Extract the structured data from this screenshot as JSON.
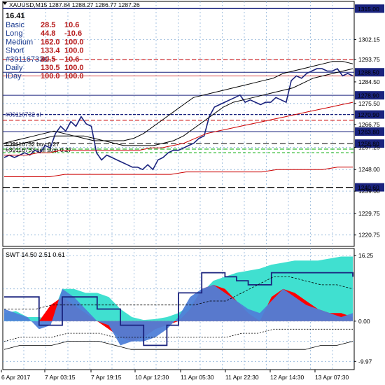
{
  "chart_data": [
    {
      "type": "line",
      "title": "XAUUSD,M15",
      "ohlc_text": "1287.84 1288.27 1286.77 1287.26",
      "ylim": [
        1216.0,
        1318.0
      ],
      "y_ticks": [
        1315.0,
        1302.15,
        1293.75,
        1288.5,
        1284.5,
        1278.9,
        1275.5,
        1270.9,
        1266.75,
        1263.8,
        1258.8,
        1257.25,
        1248.0,
        1240.6,
        1239.0,
        1229.75,
        1220.75
      ],
      "y_tick_labels": [
        "1315.00",
        "1302.15",
        "1293.75",
        "1288.50",
        "1284.50",
        "1278.90",
        "1275.50",
        "1270.90",
        "1266.75",
        "1263.80",
        "1258.80",
        "1257.25",
        "1248.00",
        "1240.60",
        "1239.00",
        "1229.75",
        "1220.75"
      ],
      "highlighted_ticks": [
        1315.0,
        1288.5,
        1278.9,
        1270.9,
        1263.8,
        1258.8,
        1240.6
      ],
      "x_tick_labels": [
        "6 Apr 2017",
        "7 Apr 03:15",
        "7 Apr 19:15",
        "10 Apr 12:30",
        "11 Apr 05:30",
        "11 Apr 22:30",
        "12 Apr 14:30",
        "13 Apr 07:30"
      ],
      "info_panel": {
        "value": "16.41",
        "rows": [
          {
            "label": "Basic",
            "v1": "28.5",
            "v2": "10.6"
          },
          {
            "label": "Long",
            "v1": "44.8",
            "v2": "-10.6"
          },
          {
            "label": "Medium",
            "v1": "162.0",
            "v2": "100.0"
          },
          {
            "label": "Short",
            "v1": "133.4",
            "v2": "100.0"
          },
          {
            "label": "#39116733sl",
            "v1": "30.5",
            "v2": "10.6"
          },
          {
            "label": "Daily",
            "v1": "130.5",
            "v2": "100.0"
          },
          {
            "label": "IDay",
            "v1": "100.0",
            "v2": "100.0"
          }
        ]
      },
      "order_labels": [
        "#39116732 sl",
        "#39116732 buy 0.27",
        "#39116733 sell stop 0.27"
      ],
      "series": [
        {
          "name": "price",
          "color": "#1a237e",
          "values": [
            1253,
            1254,
            1253,
            1254,
            1255,
            1254,
            1256,
            1255,
            1258,
            1257,
            1263,
            1266,
            1264,
            1268,
            1266,
            1270,
            1267,
            1266,
            1255,
            1252,
            1254,
            1253,
            1252,
            1251,
            1250,
            1249,
            1249,
            1248,
            1250,
            1248,
            1252,
            1253,
            1255,
            1256,
            1256,
            1257,
            1258,
            1259,
            1261,
            1262,
            1270,
            1274,
            1275,
            1276,
            1277,
            1278,
            1279,
            1276,
            1277,
            1276,
            1275,
            1276,
            1276,
            1278,
            1277,
            1276,
            1285,
            1287,
            1286,
            1288,
            1289,
            1290,
            1290,
            1289,
            1289,
            1290,
            1287,
            1288,
            1287
          ]
        },
        {
          "name": "ma-fast",
          "color": "#000000",
          "values": [
            1258,
            1258,
            1259,
            1260,
            1261,
            1262,
            1262,
            1262,
            1262,
            1261,
            1260,
            1259,
            1258,
            1258,
            1258,
            1258,
            1259,
            1260,
            1262,
            1265,
            1268,
            1271,
            1274,
            1276,
            1277,
            1278,
            1279,
            1280,
            1281,
            1282,
            1284,
            1286,
            1287,
            1288,
            1289,
            1290
          ]
        },
        {
          "name": "ma-upper",
          "color": "#000000",
          "values": [
            1259,
            1260,
            1261,
            1262,
            1263,
            1264,
            1263,
            1262,
            1261,
            1260,
            1260,
            1260,
            1260,
            1261,
            1263,
            1266,
            1269,
            1272,
            1275,
            1278,
            1279,
            1280,
            1281,
            1282,
            1283,
            1284,
            1285,
            1286,
            1288,
            1289,
            1290,
            1291,
            1292,
            1293,
            1293,
            1292
          ]
        },
        {
          "name": "ma-slow",
          "color": "#cc0000",
          "values": [
            1254,
            1254,
            1254,
            1255,
            1255,
            1256,
            1256,
            1256,
            1256,
            1256,
            1256,
            1256,
            1256,
            1257,
            1257,
            1258,
            1259,
            1261,
            1263,
            1264,
            1265,
            1266,
            1267,
            1268,
            1269,
            1270,
            1271,
            1272,
            1273,
            1274,
            1275,
            1276
          ]
        },
        {
          "name": "ma-long",
          "color": "#cc0000",
          "values": [
            1245,
            1245,
            1245,
            1245,
            1246,
            1246,
            1246,
            1246,
            1246,
            1246,
            1246,
            1246,
            1247,
            1247,
            1247,
            1247,
            1247,
            1247,
            1248,
            1248,
            1248,
            1248,
            1249,
            1249
          ]
        }
      ]
    },
    {
      "type": "area",
      "title": "SWT 14.50 2.51 0.61",
      "ylim": [
        -12.0,
        18.0
      ],
      "y_ticks": [
        16.25,
        0.0,
        -9.97
      ],
      "y_tick_labels": [
        "16.25",
        "0.00",
        "-9.97"
      ],
      "series": [
        {
          "name": "cyan",
          "color": "#40e0d0",
          "values": [
            2,
            2.5,
            1,
            1,
            0.5,
            8,
            8,
            7,
            7,
            6,
            3,
            1,
            0.3,
            0.5,
            1,
            2,
            4,
            7,
            10,
            11,
            12,
            12.5,
            13,
            14,
            14.5,
            15,
            15,
            15,
            15.5,
            16,
            16
          ]
        },
        {
          "name": "red",
          "color": "#ff0000",
          "values": [
            0,
            0,
            0,
            0,
            4,
            6,
            4,
            2,
            0,
            -2,
            -4,
            -5,
            -4,
            -2,
            -1,
            0,
            3,
            8,
            9,
            8,
            5,
            2,
            0,
            6,
            8,
            7,
            5,
            3,
            2,
            2,
            1
          ]
        },
        {
          "name": "blue",
          "color": "#4f7fd8",
          "values": [
            3,
            2,
            1,
            -2,
            -1,
            8,
            6,
            3,
            0,
            -1,
            -6,
            -5,
            -5,
            -4,
            -2,
            1,
            6,
            8,
            9,
            7,
            5,
            3,
            2,
            5,
            8,
            6,
            4,
            3,
            2,
            1,
            2
          ]
        },
        {
          "name": "dark",
          "color": "#1a237e",
          "values": [
            6,
            6,
            6,
            -1,
            -1,
            6,
            6,
            6,
            3,
            3,
            -1,
            -1,
            -6,
            -6,
            -1,
            7,
            7,
            12,
            12,
            11,
            10,
            9,
            9,
            12,
            12,
            12,
            12,
            12,
            12,
            12,
            11
          ]
        }
      ]
    }
  ]
}
